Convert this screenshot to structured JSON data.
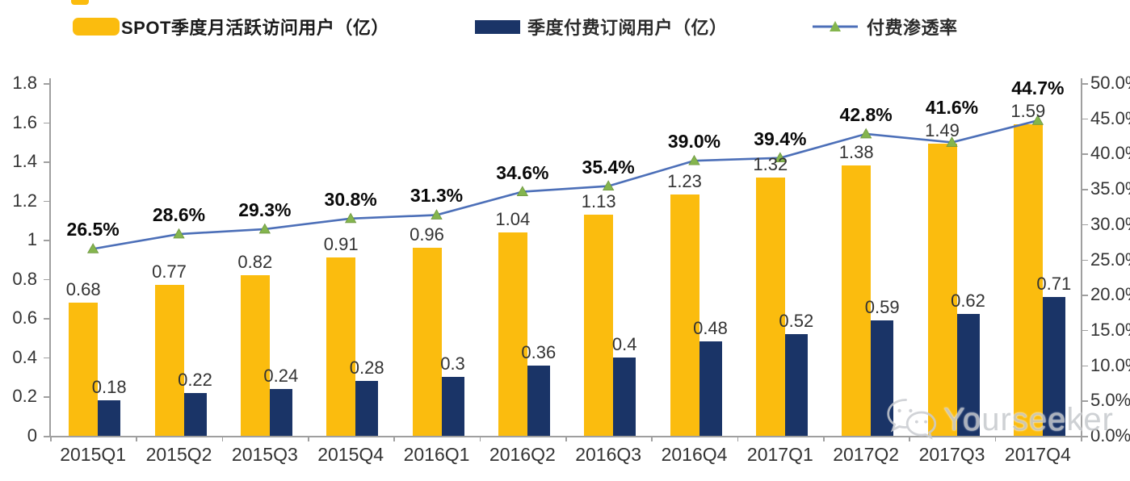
{
  "legend": {
    "items": [
      {
        "label": "SPOT季度月活跃访问用户（亿）",
        "swatch": "bar",
        "color": "#FBBC0E"
      },
      {
        "label": "季度付费订阅用户（亿）",
        "swatch": "bar",
        "color": "#1A3467"
      },
      {
        "label": "付费渗透率",
        "swatch": "line-triangle-marker",
        "line_color": "#4C6FB8",
        "marker_color": "#84B54E"
      }
    ]
  },
  "chart_data": {
    "type": "bar",
    "subtype": "grouped-bars-with-line",
    "title": "",
    "categories": [
      "2015Q1",
      "2015Q2",
      "2015Q3",
      "2015Q4",
      "2016Q1",
      "2016Q2",
      "2016Q3",
      "2016Q4",
      "2017Q1",
      "2017Q2",
      "2017Q3",
      "2017Q4"
    ],
    "series": [
      {
        "name": "SPOT季度月活跃访问用户（亿）",
        "type": "bar",
        "axis": "left",
        "color": "#FBBC0E",
        "values": [
          0.68,
          0.77,
          0.82,
          0.91,
          0.96,
          1.04,
          1.13,
          1.23,
          1.32,
          1.38,
          1.49,
          1.59
        ],
        "labels": [
          "0.68",
          "0.77",
          "0.82",
          "0.91",
          "0.96",
          "1.04",
          "1.13",
          "1.23",
          "1.32",
          "1.38",
          "1.49",
          "1.59"
        ]
      },
      {
        "name": "季度付费订阅用户（亿）",
        "type": "bar",
        "axis": "left",
        "color": "#1A3467",
        "values": [
          0.18,
          0.22,
          0.24,
          0.28,
          0.3,
          0.36,
          0.4,
          0.48,
          0.52,
          0.59,
          0.62,
          0.71
        ],
        "labels": [
          "0.18",
          "0.22",
          "0.24",
          "0.28",
          "0.3",
          "0.36",
          "0.4",
          "0.48",
          "0.52",
          "0.59",
          "0.62",
          "0.71"
        ]
      },
      {
        "name": "付费渗透率",
        "type": "line",
        "axis": "right",
        "color": "#4C6FB8",
        "marker": "triangle",
        "marker_color": "#84B54E",
        "values": [
          26.5,
          28.6,
          29.3,
          30.8,
          31.3,
          34.6,
          35.4,
          39.0,
          39.4,
          42.8,
          41.6,
          44.7
        ],
        "labels": [
          "26.5%",
          "28.6%",
          "29.3%",
          "30.8%",
          "31.3%",
          "34.6%",
          "35.4%",
          "39.0%",
          "39.4%",
          "42.8%",
          "41.6%",
          "44.7%"
        ]
      }
    ],
    "left_axis": {
      "min": 0,
      "max": 1.8,
      "step": 0.2,
      "tick_labels": [
        "0",
        "0.2",
        "0.4",
        "0.6",
        "0.8",
        "1",
        "1.2",
        "1.4",
        "1.6",
        "1.8"
      ]
    },
    "right_axis": {
      "min": 0,
      "max": 50,
      "step": 5,
      "tick_labels": [
        "0.0%",
        "5.0%",
        "10.0%",
        "15.0%",
        "20.0%",
        "25.0%",
        "30.0%",
        "35.0%",
        "40.0%",
        "45.0%",
        "50.0%"
      ]
    },
    "grid": false,
    "legend_position": "top"
  },
  "watermark": {
    "text": "Yourseeker",
    "icon": "wechat-icon"
  },
  "colors": {
    "axis": "#9f9f9f",
    "tick_label": "#333333",
    "bar_label": "#333333",
    "percent_label": "#0a0a0a",
    "watermark": "#c9ccd1",
    "background": "#ffffff"
  }
}
